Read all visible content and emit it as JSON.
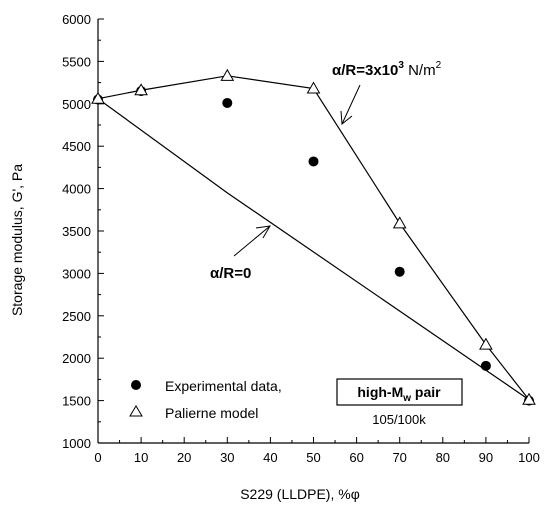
{
  "chart_data": {
    "type": "scatter",
    "xlabel": "S229 (LLDPE), %φ",
    "ylabel": "Storage modulus, G', Pa",
    "xlim": [
      0,
      100
    ],
    "ylim": [
      1000,
      6000
    ],
    "x_ticks": [
      0,
      10,
      20,
      30,
      40,
      50,
      60,
      70,
      80,
      90,
      100
    ],
    "y_ticks": [
      1000,
      1500,
      2000,
      2500,
      3000,
      3500,
      4000,
      4500,
      5000,
      5500,
      6000
    ],
    "grid": false,
    "series": [
      {
        "name": "Experimental data,",
        "marker": "filled-circle",
        "x": [
          0,
          10,
          30,
          50,
          70,
          90,
          100
        ],
        "y": [
          5050,
          5150,
          5010,
          4320,
          3020,
          1910,
          1500
        ]
      },
      {
        "name": "Palierne model",
        "marker": "open-triangle",
        "line": true,
        "x": [
          0,
          10,
          30,
          50,
          70,
          90,
          100
        ],
        "y": [
          5060,
          5160,
          5330,
          5180,
          3590,
          2160,
          1510
        ]
      },
      {
        "name": "α/R=0 line",
        "marker": "none",
        "line": true,
        "x": [
          0,
          30,
          100
        ],
        "y": [
          5060,
          3950,
          1510
        ]
      }
    ],
    "annotations": {
      "upper_label_main": "α/R=3x10",
      "upper_label_exp": "3",
      "upper_label_unit": " N/m",
      "upper_label_unit_exp": "2",
      "lower_label": "α/R=0",
      "pair_label_pre": "high-M",
      "pair_label_sub": "w",
      "pair_label_post": " pair",
      "pair_sublabel": "105/100k"
    }
  }
}
